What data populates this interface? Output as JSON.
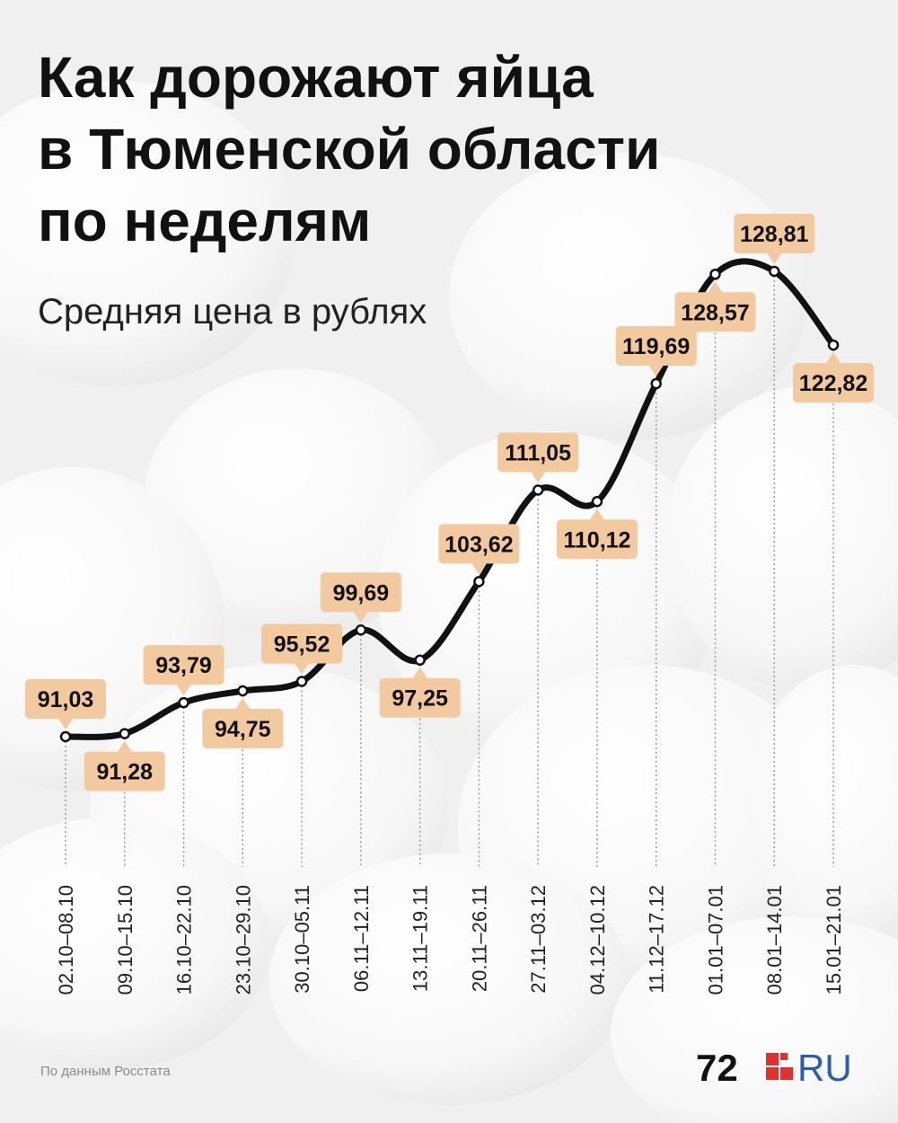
{
  "chart_data": {
    "type": "line",
    "title": [
      "Как дорожают яйца",
      "в Тюменской области",
      "по неделям"
    ],
    "subtitle": "Средняя цена в рублях",
    "categories": [
      "02.10–08.10",
      "09.10–15.10",
      "16.10–22.10",
      "23.10–29.10",
      "30.10–05.11",
      "06.11–12.11",
      "13.11–19.11",
      "20.11–26.11",
      "27.11–03.12",
      "04.12–10.12",
      "11.12–17.12",
      "01.01–07.01",
      "08.01–14.01",
      "15.01–21.01"
    ],
    "values": [
      91.03,
      91.28,
      93.79,
      94.75,
      95.52,
      99.69,
      97.25,
      103.62,
      111.05,
      110.12,
      119.69,
      128.57,
      128.81,
      122.82
    ],
    "value_labels": [
      "91,03",
      "91,28",
      "93,79",
      "94,75",
      "95,52",
      "99,69",
      "97,25",
      "103,62",
      "111,05",
      "110,12",
      "119,69",
      "128,57",
      "128,81",
      "122,82"
    ],
    "color": "#111111",
    "label_color": "#f3c9a0",
    "source": "По данным Росстата",
    "logo": [
      "72",
      "RU"
    ]
  }
}
